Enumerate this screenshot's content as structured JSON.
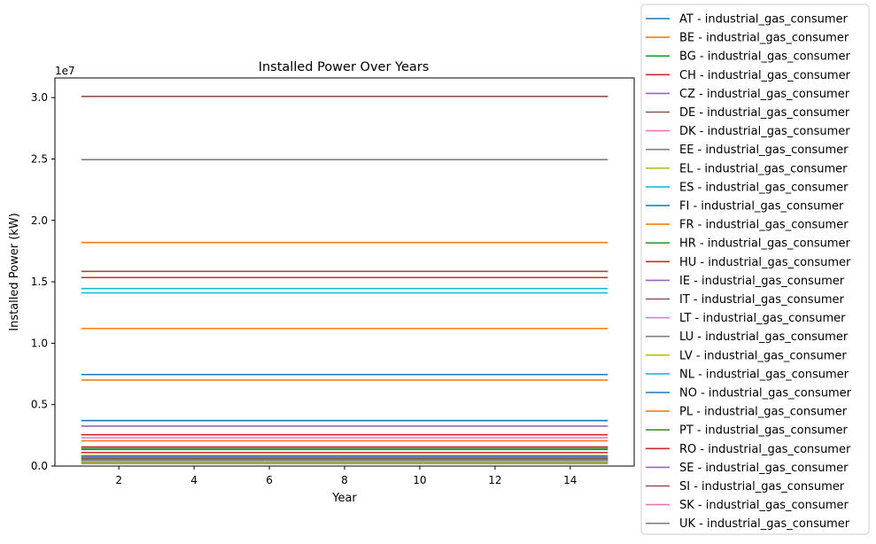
{
  "chart_data": {
    "type": "line",
    "title": "Installed Power Over Years",
    "xlabel": "Year",
    "ylabel": "Installed Power (kW)",
    "y_scale_label": "1e7",
    "xlim": [
      0.3,
      15.7
    ],
    "ylim": [
      0,
      31600000
    ],
    "x": [
      1,
      15
    ],
    "xticks": [
      2,
      4,
      6,
      8,
      10,
      12,
      14
    ],
    "xtick_labels": [
      "2",
      "4",
      "6",
      "8",
      "10",
      "12",
      "14"
    ],
    "yticks": [
      0,
      5000000,
      10000000,
      15000000,
      20000000,
      25000000,
      30000000
    ],
    "ytick_labels": [
      "0.0",
      "0.5",
      "1.0",
      "1.5",
      "2.0",
      "2.5",
      "3.0"
    ],
    "legend_position": "outside-right",
    "grid": false,
    "series": [
      {
        "name": "AT - industrial_gas_consumer",
        "color": "#1f77b4",
        "values": [
          1350000,
          1350000
        ]
      },
      {
        "name": "BE - industrial_gas_consumer",
        "color": "#ff7f0e",
        "values": [
          2050000,
          2050000
        ]
      },
      {
        "name": "BG - industrial_gas_consumer",
        "color": "#2ca02c",
        "values": [
          450000,
          450000
        ]
      },
      {
        "name": "CH - industrial_gas_consumer",
        "color": "#d62728",
        "values": [
          1100000,
          1100000
        ]
      },
      {
        "name": "CZ - industrial_gas_consumer",
        "color": "#9467bd",
        "values": [
          1550000,
          1550000
        ]
      },
      {
        "name": "DE - industrial_gas_consumer",
        "color": "#8c564b",
        "values": [
          30100000,
          30100000
        ]
      },
      {
        "name": "DK - industrial_gas_consumer",
        "color": "#e377c2",
        "values": [
          600000,
          600000
        ]
      },
      {
        "name": "EE - industrial_gas_consumer",
        "color": "#7f7f7f",
        "values": [
          300000,
          300000
        ]
      },
      {
        "name": "EL - industrial_gas_consumer",
        "color": "#bcbd22",
        "values": [
          850000,
          850000
        ]
      },
      {
        "name": "ES - industrial_gas_consumer",
        "color": "#17becf",
        "values": [
          14100000,
          14100000
        ]
      },
      {
        "name": "FI - industrial_gas_consumer",
        "color": "#1f77b4",
        "values": [
          800000,
          800000
        ]
      },
      {
        "name": "FR - industrial_gas_consumer",
        "color": "#ff7f0e",
        "values": [
          18200000,
          18200000
        ]
      },
      {
        "name": "HR - industrial_gas_consumer",
        "color": "#2ca02c",
        "values": [
          600000,
          600000
        ]
      },
      {
        "name": "HU - industrial_gas_consumer",
        "color": "#d62728",
        "values": [
          1550000,
          1550000
        ]
      },
      {
        "name": "IE - industrial_gas_consumer",
        "color": "#9467bd",
        "values": [
          500000,
          500000
        ]
      },
      {
        "name": "IT - industrial_gas_consumer",
        "color": "#8c564b",
        "values": [
          15850000,
          15850000
        ]
      },
      {
        "name": "LT - industrial_gas_consumer",
        "color": "#e377c2",
        "values": [
          700000,
          700000
        ]
      },
      {
        "name": "LU - industrial_gas_consumer",
        "color": "#7f7f7f",
        "values": [
          200000,
          200000
        ]
      },
      {
        "name": "LV - industrial_gas_consumer",
        "color": "#bcbd22",
        "values": [
          250000,
          250000
        ]
      },
      {
        "name": "NL - industrial_gas_consumer",
        "color": "#17becf",
        "values": [
          14450000,
          14450000
        ]
      },
      {
        "name": "NO - industrial_gas_consumer",
        "color": "#1f77b4",
        "values": [
          3700000,
          3700000
        ]
      },
      {
        "name": "PL - industrial_gas_consumer",
        "color": "#ff7f0e",
        "values": [
          11200000,
          11200000
        ]
      },
      {
        "name": "PT - industrial_gas_consumer",
        "color": "#2ca02c",
        "values": [
          1400000,
          1400000
        ]
      },
      {
        "name": "RO - industrial_gas_consumer",
        "color": "#d62728",
        "values": [
          2550000,
          2550000
        ]
      },
      {
        "name": "SE - industrial_gas_consumer",
        "color": "#9467bd",
        "values": [
          3250000,
          3250000
        ]
      },
      {
        "name": "SI - industrial_gas_consumer",
        "color": "#8c564b",
        "values": [
          650000,
          650000
        ]
      },
      {
        "name": "SK - industrial_gas_consumer",
        "color": "#e377c2",
        "values": [
          2300000,
          2300000
        ]
      },
      {
        "name": "UK - industrial_gas_consumer",
        "color": "#7f7f7f",
        "values": [
          24950000,
          24950000
        ]
      }
    ],
    "extra_lines": [
      {
        "color": "#1f77b4",
        "values": [
          7450000,
          7450000
        ]
      },
      {
        "color": "#ff7f0e",
        "values": [
          7000000,
          7000000
        ]
      },
      {
        "color": "#d62728",
        "values": [
          15350000,
          15350000
        ]
      }
    ]
  }
}
